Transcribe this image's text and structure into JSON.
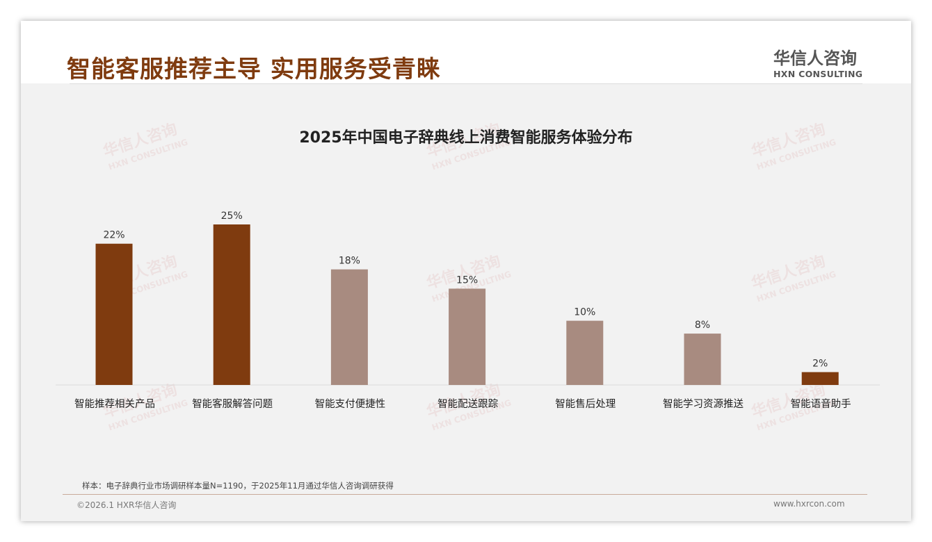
{
  "header": {
    "title": "智能客服推荐主导 实用服务受青睐",
    "logo_cn": "华信人咨询",
    "logo_en": "HXN CONSULTING"
  },
  "chart_data": {
    "type": "bar",
    "title": "2025年中国电子辞典线上消费智能服务体验分布",
    "categories": [
      "智能推荐相关产品",
      "智能客服解答问题",
      "智能支付便捷性",
      "智能配送跟踪",
      "智能售后处理",
      "智能学习资源推送",
      "智能语音助手"
    ],
    "values": [
      22,
      25,
      18,
      15,
      10,
      8,
      2
    ],
    "labels": [
      "22%",
      "25%",
      "18%",
      "15%",
      "10%",
      "8%",
      "2%"
    ],
    "highlight": [
      true,
      true,
      false,
      false,
      false,
      false,
      true
    ],
    "colors": {
      "highlight": "#7f3b0f",
      "normal": "#a88b80"
    },
    "ylim": [
      0,
      25
    ],
    "xlabel": "",
    "ylabel": ""
  },
  "footer": {
    "note": "样本：电子辞典行业市场调研样本量N=1190，于2025年11月通过华信人咨询调研获得",
    "copyright": "©2026.1 HXR华信人咨询",
    "website": "www.hxrcon.com"
  }
}
